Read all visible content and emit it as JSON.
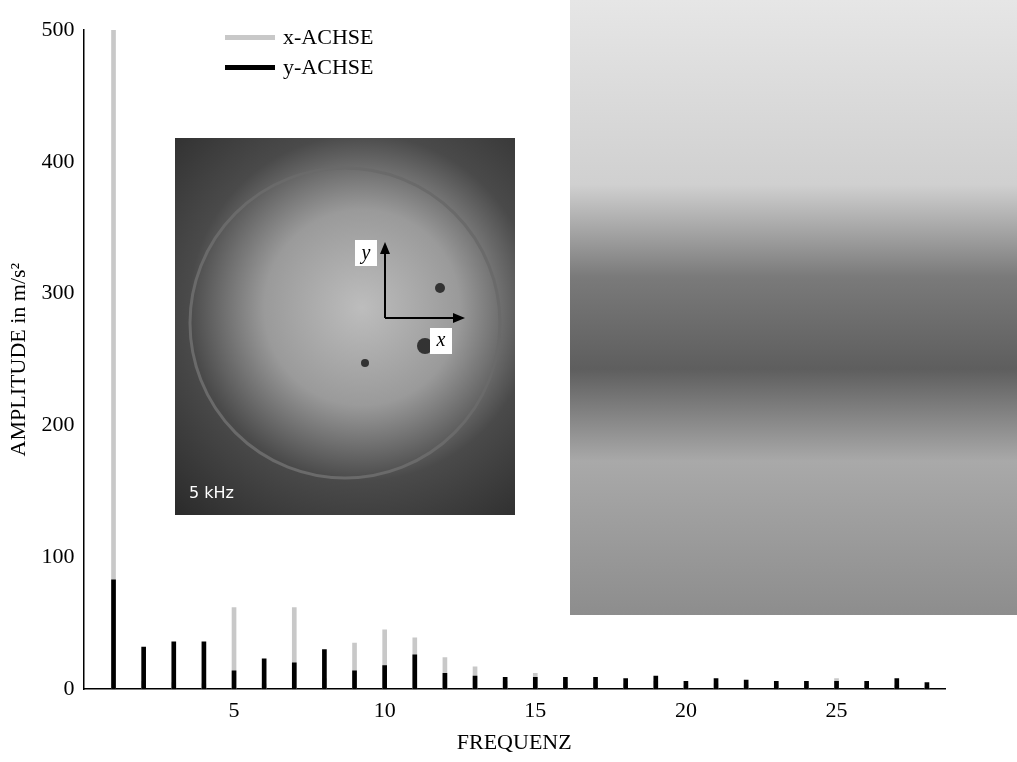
{
  "chart_data": {
    "type": "bar",
    "x_label": "FREQUENZ",
    "y_label": "AMPLITUDE in m/s²",
    "x": [
      1,
      2,
      3,
      4,
      5,
      6,
      7,
      8,
      9,
      10,
      11,
      12,
      13,
      14,
      15,
      16,
      17,
      18,
      19,
      20,
      21,
      22,
      23,
      24,
      25,
      26,
      27,
      28
    ],
    "series": [
      {
        "name": "x-ACHSE",
        "color": "#c8c8c8",
        "values": [
          500,
          6,
          5,
          4,
          62,
          4,
          62,
          8,
          35,
          45,
          39,
          24,
          17,
          6,
          12,
          5,
          5,
          4,
          6,
          3,
          4,
          3,
          3,
          3,
          8,
          3,
          3,
          2
        ]
      },
      {
        "name": "y-ACHSE",
        "color": "#000000",
        "values": [
          83,
          32,
          36,
          36,
          14,
          23,
          20,
          30,
          14,
          18,
          26,
          12,
          10,
          9,
          9,
          9,
          9,
          8,
          10,
          6,
          8,
          7,
          6,
          6,
          6,
          6,
          8,
          5
        ]
      }
    ],
    "xlim": [
      0,
      28.6
    ],
    "xticks": [
      5,
      10,
      15,
      20,
      25
    ],
    "ylim": [
      0,
      500
    ],
    "yticks": [
      0,
      100,
      200,
      300,
      400,
      500
    ],
    "grid": false,
    "legend": "upper left"
  },
  "inset_photo": {
    "axes": [
      "y",
      "x"
    ],
    "caption": "5 kHz"
  }
}
